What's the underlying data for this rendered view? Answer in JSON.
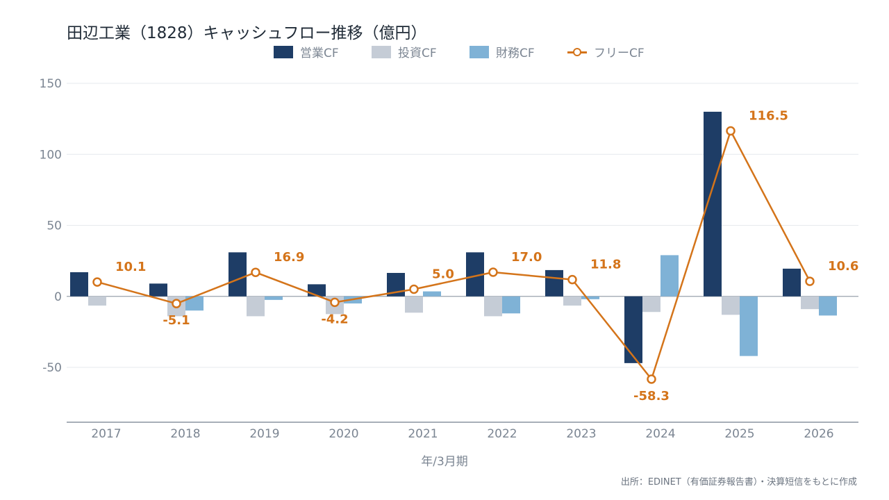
{
  "title": "田辺工業（1828）キャッシュフロー推移（億円）",
  "source_note": "出所：EDINET（有価証券報告書）・決算短信をもとに作成",
  "legend": {
    "operating": "営業CF",
    "investing": "投資CF",
    "financing": "財務CF",
    "free": "フリーCF"
  },
  "colors": {
    "operating": "#1e3d66",
    "investing": "#c5ccd6",
    "financing": "#7fb2d6",
    "free": "#d4741a",
    "axis": "#8a94a0",
    "grid": "#e6e9ed",
    "tick": "#7b8592"
  },
  "chart_data": {
    "type": "bar",
    "title": "田辺工業（1828）キャッシュフロー推移（億円）",
    "xlabel": "年/3月期",
    "ylabel": "",
    "ylim": [
      -90,
      150
    ],
    "yticks": [
      -50,
      0,
      50,
      100,
      150
    ],
    "grid": true,
    "legend_position": "top-center",
    "categories": [
      "2017",
      "2018",
      "2019",
      "2020",
      "2021",
      "2022",
      "2023",
      "2024",
      "2025",
      "2026"
    ],
    "series": [
      {
        "name": "営業CF",
        "type": "bar",
        "values": [
          17,
          9,
          31,
          8.5,
          16.5,
          31,
          18.5,
          -47,
          130,
          19.5
        ]
      },
      {
        "name": "投資CF",
        "type": "bar",
        "values": [
          -6.5,
          -14,
          -14,
          -12.5,
          -11.5,
          -14,
          -6.5,
          -11,
          -13,
          -9
        ]
      },
      {
        "name": "財務CF",
        "type": "bar",
        "values": [
          0,
          -10,
          -2.5,
          -5,
          3.5,
          -12,
          -2,
          29,
          -42,
          -13.5
        ]
      },
      {
        "name": "フリーCF",
        "type": "line",
        "values": [
          10.1,
          -5.1,
          16.9,
          -4.2,
          5.0,
          17.0,
          11.8,
          -58.3,
          116.5,
          10.6
        ]
      }
    ],
    "data_labels": [
      "10.1",
      "-5.1",
      "16.9",
      "-4.2",
      "5.0",
      "17.0",
      "11.8",
      "-58.3",
      "116.5",
      "10.6"
    ]
  }
}
